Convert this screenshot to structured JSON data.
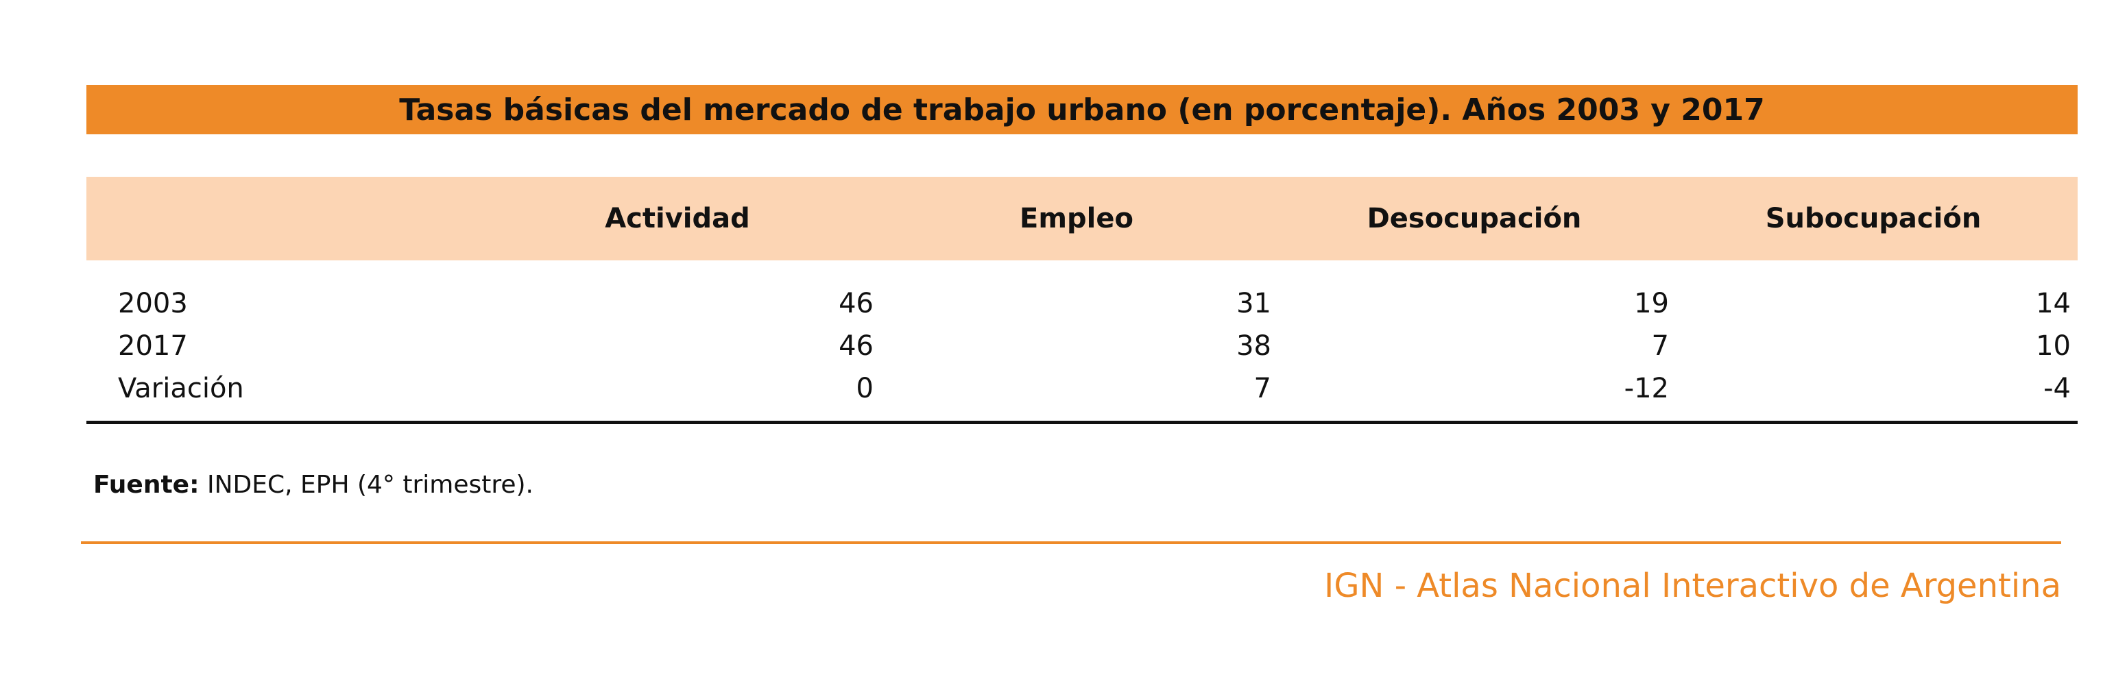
{
  "colors": {
    "accent": "#EE8A28",
    "header_band": "#FCD5B4",
    "text": "#111111"
  },
  "chart_data": {
    "type": "table",
    "title": "Tasas básicas del mercado de trabajo urbano (en porcentaje). Años 2003 y 2017",
    "columns": [
      "Actividad",
      "Empleo",
      "Desocupación",
      "Subocupación"
    ],
    "rows": [
      {
        "label": "2003",
        "values": [
          "46",
          "31",
          "19",
          "14"
        ]
      },
      {
        "label": "2017",
        "values": [
          "46",
          "38",
          "7",
          "10"
        ]
      },
      {
        "label": "Variación",
        "values": [
          "0",
          "7",
          "-12",
          "-4"
        ]
      }
    ]
  },
  "footer": {
    "source_label": "Fuente:",
    "source_text": "INDEC, EPH (4° trimestre).",
    "brand": "IGN - Atlas Nacional Interactivo de Argentina"
  }
}
